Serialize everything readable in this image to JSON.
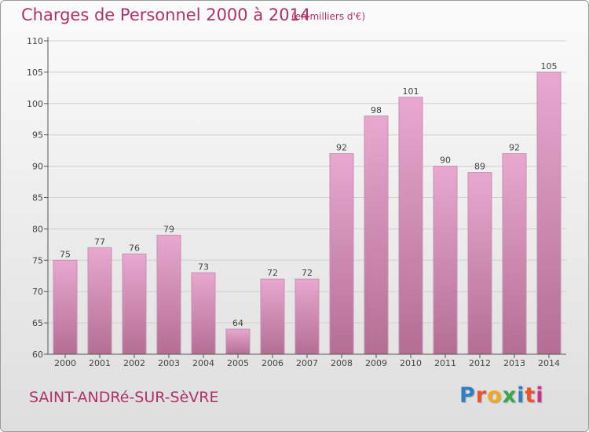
{
  "header": {
    "title": "Charges de Personnel 2000 à 2014",
    "subtitle": "(en milliers d'€)"
  },
  "footer": {
    "commune": "SAINT-ANDRé-SUR-SèVRE",
    "logo": "Proxiti",
    "logo_colors": [
      "#2f7fc1",
      "#e8542b",
      "#f0a821",
      "#3aa64a",
      "#2f7fc1",
      "#e8542b",
      "#c9318b"
    ]
  },
  "colors": {
    "bar_top": "#e8a8d0",
    "bar_bottom": "#b46e94",
    "bar_edge": "#c98fb0",
    "grid": "#cfcfcf",
    "axis": "#555555",
    "text": "#444444",
    "accent": "#b0306a"
  },
  "chart_data": {
    "type": "bar",
    "title": "Charges de Personnel 2000 à 2014",
    "subtitle": "(en milliers d'€)",
    "categories": [
      "2000",
      "2001",
      "2002",
      "2003",
      "2004",
      "2005",
      "2006",
      "2007",
      "2008",
      "2009",
      "2010",
      "2011",
      "2012",
      "2013",
      "2014"
    ],
    "values": [
      75,
      77,
      76,
      79,
      73,
      64,
      72,
      72,
      92,
      98,
      101,
      90,
      89,
      92,
      105
    ],
    "ylim": [
      60,
      110
    ],
    "yticks": [
      60,
      65,
      70,
      75,
      80,
      85,
      90,
      95,
      100,
      105,
      110
    ],
    "grid": true,
    "data_labels": true,
    "xlabel": "",
    "ylabel": ""
  }
}
